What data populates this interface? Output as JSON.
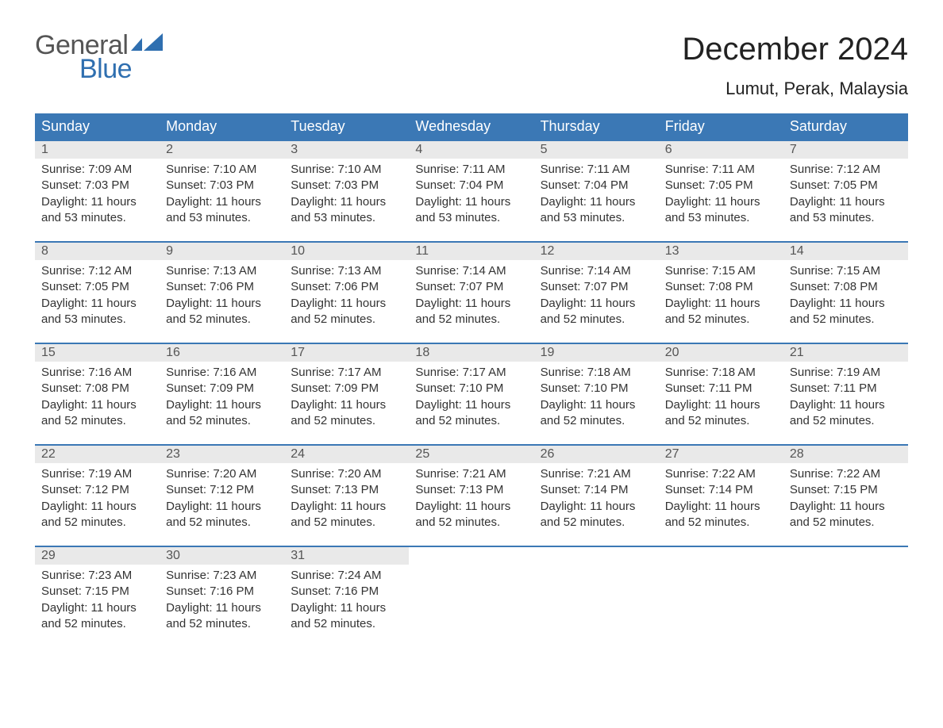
{
  "logo": {
    "part1": "General",
    "part2": "Blue",
    "flag_color": "#2f6fb0"
  },
  "title": "December 2024",
  "location": "Lumut, Perak, Malaysia",
  "colors": {
    "header_bg": "#3b78b5",
    "header_text": "#ffffff",
    "daynum_bg": "#e9e9e9",
    "daynum_text": "#555555",
    "body_text": "#333333",
    "week_border": "#3b78b5",
    "page_bg": "#ffffff"
  },
  "day_names": [
    "Sunday",
    "Monday",
    "Tuesday",
    "Wednesday",
    "Thursday",
    "Friday",
    "Saturday"
  ],
  "weeks": [
    [
      {
        "n": "1",
        "sr": "7:09 AM",
        "ss": "7:03 PM",
        "dl": "11 hours and 53 minutes."
      },
      {
        "n": "2",
        "sr": "7:10 AM",
        "ss": "7:03 PM",
        "dl": "11 hours and 53 minutes."
      },
      {
        "n": "3",
        "sr": "7:10 AM",
        "ss": "7:03 PM",
        "dl": "11 hours and 53 minutes."
      },
      {
        "n": "4",
        "sr": "7:11 AM",
        "ss": "7:04 PM",
        "dl": "11 hours and 53 minutes."
      },
      {
        "n": "5",
        "sr": "7:11 AM",
        "ss": "7:04 PM",
        "dl": "11 hours and 53 minutes."
      },
      {
        "n": "6",
        "sr": "7:11 AM",
        "ss": "7:05 PM",
        "dl": "11 hours and 53 minutes."
      },
      {
        "n": "7",
        "sr": "7:12 AM",
        "ss": "7:05 PM",
        "dl": "11 hours and 53 minutes."
      }
    ],
    [
      {
        "n": "8",
        "sr": "7:12 AM",
        "ss": "7:05 PM",
        "dl": "11 hours and 53 minutes."
      },
      {
        "n": "9",
        "sr": "7:13 AM",
        "ss": "7:06 PM",
        "dl": "11 hours and 52 minutes."
      },
      {
        "n": "10",
        "sr": "7:13 AM",
        "ss": "7:06 PM",
        "dl": "11 hours and 52 minutes."
      },
      {
        "n": "11",
        "sr": "7:14 AM",
        "ss": "7:07 PM",
        "dl": "11 hours and 52 minutes."
      },
      {
        "n": "12",
        "sr": "7:14 AM",
        "ss": "7:07 PM",
        "dl": "11 hours and 52 minutes."
      },
      {
        "n": "13",
        "sr": "7:15 AM",
        "ss": "7:08 PM",
        "dl": "11 hours and 52 minutes."
      },
      {
        "n": "14",
        "sr": "7:15 AM",
        "ss": "7:08 PM",
        "dl": "11 hours and 52 minutes."
      }
    ],
    [
      {
        "n": "15",
        "sr": "7:16 AM",
        "ss": "7:08 PM",
        "dl": "11 hours and 52 minutes."
      },
      {
        "n": "16",
        "sr": "7:16 AM",
        "ss": "7:09 PM",
        "dl": "11 hours and 52 minutes."
      },
      {
        "n": "17",
        "sr": "7:17 AM",
        "ss": "7:09 PM",
        "dl": "11 hours and 52 minutes."
      },
      {
        "n": "18",
        "sr": "7:17 AM",
        "ss": "7:10 PM",
        "dl": "11 hours and 52 minutes."
      },
      {
        "n": "19",
        "sr": "7:18 AM",
        "ss": "7:10 PM",
        "dl": "11 hours and 52 minutes."
      },
      {
        "n": "20",
        "sr": "7:18 AM",
        "ss": "7:11 PM",
        "dl": "11 hours and 52 minutes."
      },
      {
        "n": "21",
        "sr": "7:19 AM",
        "ss": "7:11 PM",
        "dl": "11 hours and 52 minutes."
      }
    ],
    [
      {
        "n": "22",
        "sr": "7:19 AM",
        "ss": "7:12 PM",
        "dl": "11 hours and 52 minutes."
      },
      {
        "n": "23",
        "sr": "7:20 AM",
        "ss": "7:12 PM",
        "dl": "11 hours and 52 minutes."
      },
      {
        "n": "24",
        "sr": "7:20 AM",
        "ss": "7:13 PM",
        "dl": "11 hours and 52 minutes."
      },
      {
        "n": "25",
        "sr": "7:21 AM",
        "ss": "7:13 PM",
        "dl": "11 hours and 52 minutes."
      },
      {
        "n": "26",
        "sr": "7:21 AM",
        "ss": "7:14 PM",
        "dl": "11 hours and 52 minutes."
      },
      {
        "n": "27",
        "sr": "7:22 AM",
        "ss": "7:14 PM",
        "dl": "11 hours and 52 minutes."
      },
      {
        "n": "28",
        "sr": "7:22 AM",
        "ss": "7:15 PM",
        "dl": "11 hours and 52 minutes."
      }
    ],
    [
      {
        "n": "29",
        "sr": "7:23 AM",
        "ss": "7:15 PM",
        "dl": "11 hours and 52 minutes."
      },
      {
        "n": "30",
        "sr": "7:23 AM",
        "ss": "7:16 PM",
        "dl": "11 hours and 52 minutes."
      },
      {
        "n": "31",
        "sr": "7:24 AM",
        "ss": "7:16 PM",
        "dl": "11 hours and 52 minutes."
      },
      null,
      null,
      null,
      null
    ]
  ],
  "labels": {
    "sunrise": "Sunrise: ",
    "sunset": "Sunset: ",
    "daylight": "Daylight: "
  }
}
